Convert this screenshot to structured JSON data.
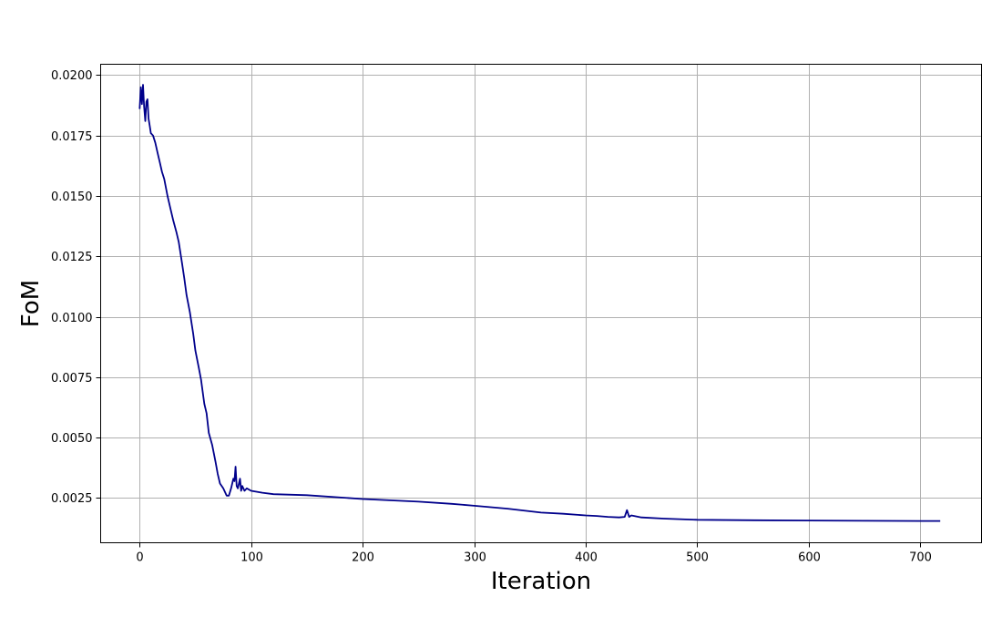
{
  "chart_data": {
    "type": "line",
    "xlabel": "Iteration",
    "ylabel": "FoM",
    "xlim": [
      -35,
      755
    ],
    "ylim": [
      0.00065,
      0.02045
    ],
    "xticks": [
      0,
      100,
      200,
      300,
      400,
      500,
      600,
      700
    ],
    "xtick_labels": [
      "0",
      "100",
      "200",
      "300",
      "400",
      "500",
      "600",
      "700"
    ],
    "yticks": [
      0.0025,
      0.005,
      0.0075,
      0.01,
      0.0125,
      0.015,
      0.0175,
      0.02
    ],
    "ytick_labels": [
      "0.0025",
      "0.0050",
      "0.0075",
      "0.0100",
      "0.0125",
      "0.0150",
      "0.0175",
      "0.0200"
    ],
    "grid": true,
    "legend": "none",
    "series_color": "#00008b",
    "series": [
      {
        "x": [
          0,
          1,
          2,
          3,
          4,
          5,
          6,
          7,
          8,
          9,
          10,
          12,
          14,
          16,
          18,
          20,
          22,
          25,
          28,
          30,
          33,
          35,
          38,
          40,
          42,
          45,
          48,
          50,
          53,
          55,
          58,
          60,
          62,
          65,
          68,
          70,
          72,
          75,
          78,
          80,
          82,
          84,
          85,
          86,
          87,
          88,
          89,
          90,
          91,
          92,
          94,
          96,
          100,
          110,
          120,
          150,
          200,
          250,
          280,
          300,
          330,
          360,
          380,
          400,
          410,
          420,
          430,
          435,
          437,
          439,
          441,
          450,
          470,
          500,
          550,
          600,
          650,
          700,
          718
        ],
        "y": [
          0.0186,
          0.0195,
          0.0188,
          0.0196,
          0.0187,
          0.0181,
          0.0189,
          0.019,
          0.0182,
          0.0179,
          0.0176,
          0.0175,
          0.0172,
          0.0168,
          0.0164,
          0.016,
          0.0157,
          0.015,
          0.0144,
          0.014,
          0.0135,
          0.0131,
          0.0122,
          0.0116,
          0.0109,
          0.0102,
          0.0093,
          0.0086,
          0.0079,
          0.0074,
          0.0064,
          0.006,
          0.0052,
          0.0047,
          0.004,
          0.0035,
          0.0031,
          0.0029,
          0.0026,
          0.0026,
          0.0029,
          0.0033,
          0.0032,
          0.0038,
          0.003,
          0.0029,
          0.0031,
          0.0033,
          0.0028,
          0.003,
          0.0028,
          0.0029,
          0.0028,
          0.00272,
          0.00266,
          0.00262,
          0.00246,
          0.00235,
          0.00226,
          0.00218,
          0.00206,
          0.0019,
          0.00185,
          0.00178,
          0.00176,
          0.00172,
          0.0017,
          0.00172,
          0.002,
          0.00172,
          0.00178,
          0.0017,
          0.00165,
          0.0016,
          0.00158,
          0.00157,
          0.00156,
          0.00155,
          0.00155
        ]
      }
    ]
  }
}
